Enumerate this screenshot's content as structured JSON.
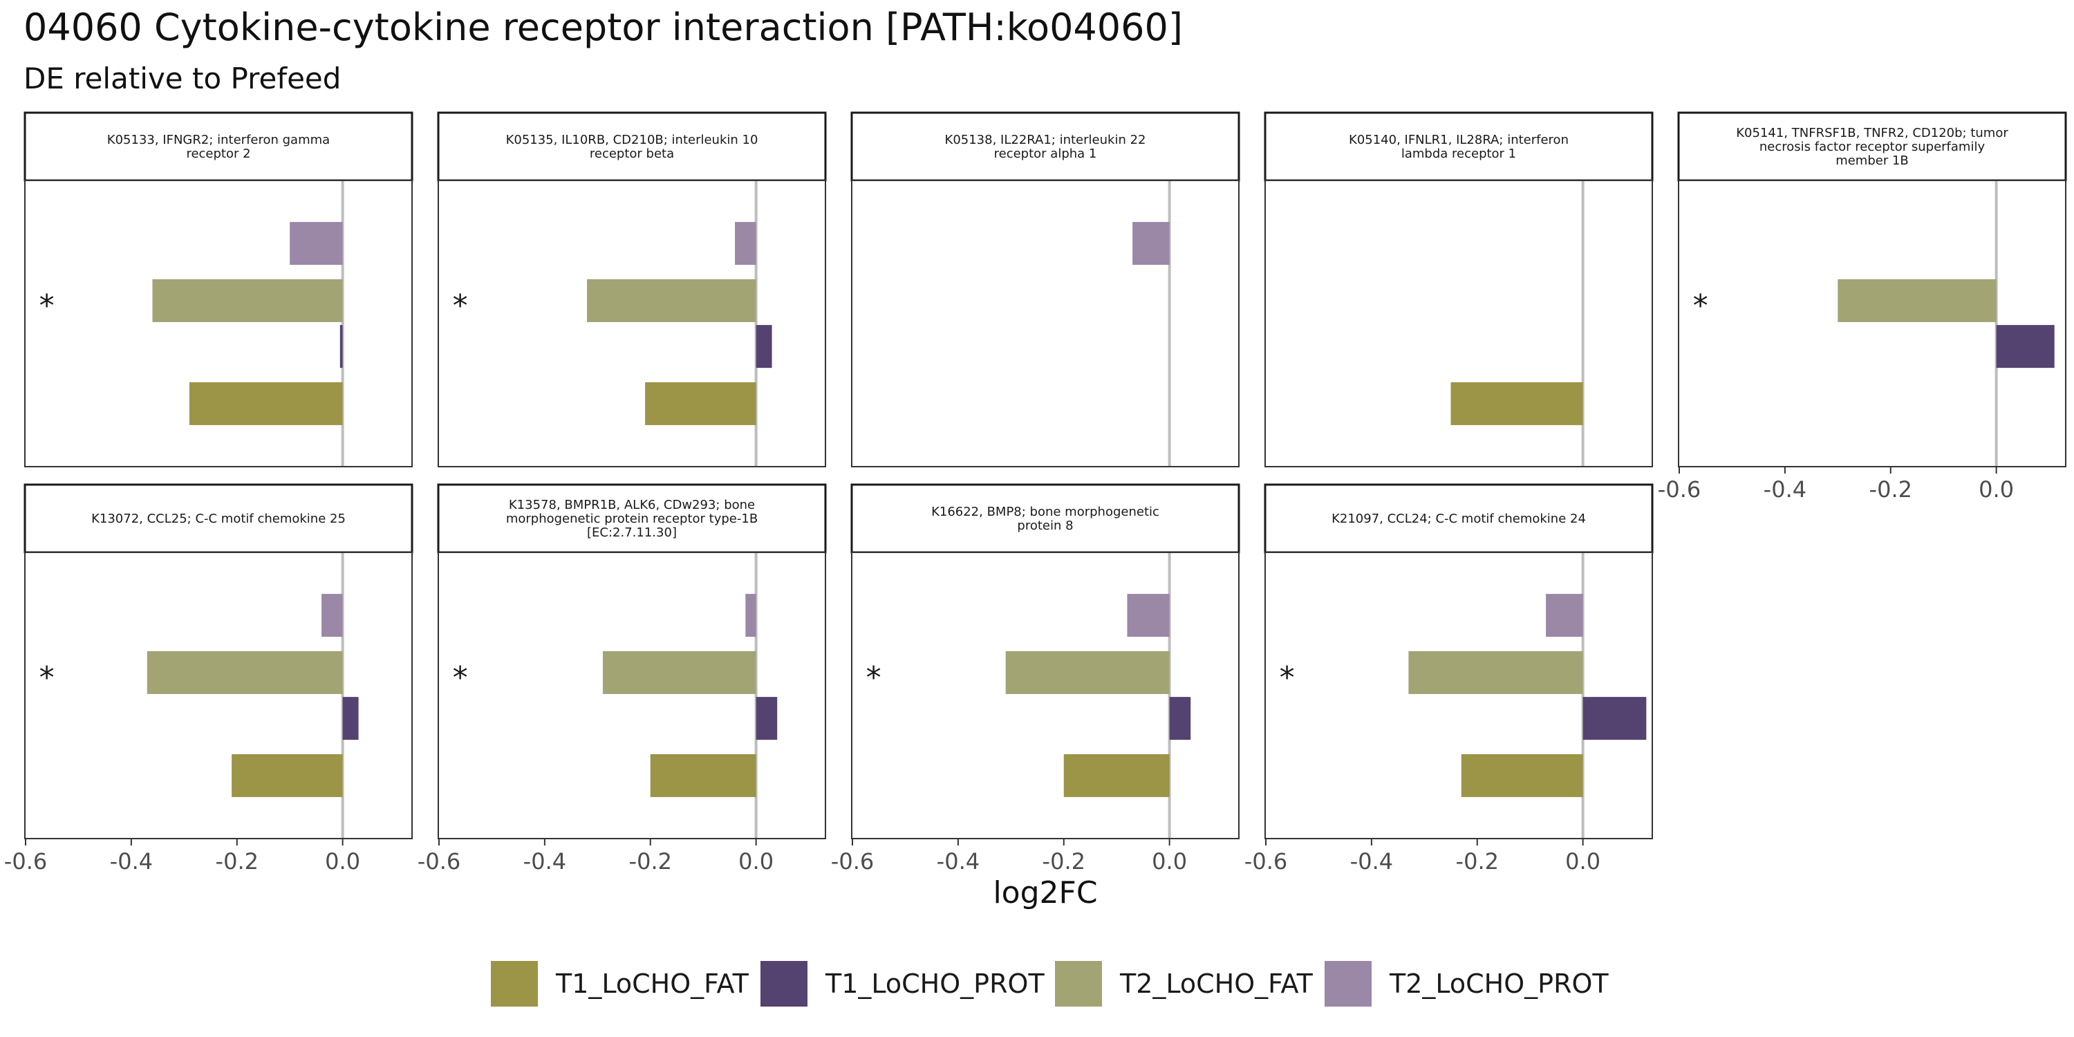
{
  "title": "04060 Cytokine-cytokine receptor interaction [PATH:ko04060]",
  "subtitle": "DE relative to Prefeed",
  "xlabel": "log2FC",
  "colors": {
    "T1_LoCHO_FAT": "#9c9446",
    "T1_LoCHO_PROT": "#544270",
    "T2_LoCHO_FAT": "#a2a474",
    "T2_LoCHO_PROT": "#9b87a6"
  },
  "legend": {
    "items": [
      "T1_LoCHO_FAT",
      "T1_LoCHO_PROT",
      "T2_LoCHO_FAT",
      "T2_LoCHO_PROT"
    ]
  },
  "chart_data": {
    "type": "bar",
    "orientation": "horizontal",
    "facet_layout": "2 rows x 5 columns, x axis shared per column",
    "xlim": [
      -0.6,
      0.13
    ],
    "xticks": [
      -0.6,
      -0.4,
      -0.2,
      0.0
    ],
    "xtick_labels": [
      "-0.6",
      "-0.4",
      "-0.2",
      "0.0"
    ],
    "series": [
      "T2_LoCHO_PROT",
      "T2_LoCHO_FAT",
      "T1_LoCHO_PROT",
      "T1_LoCHO_FAT"
    ],
    "significance_marker": "*",
    "facets": [
      {
        "label": "K05133, IFNGR2; interferon gamma\nreceptor 2",
        "values": {
          "T2_LoCHO_PROT": -0.1,
          "T2_LoCHO_FAT": -0.36,
          "T1_LoCHO_PROT": -0.005,
          "T1_LoCHO_FAT": -0.29
        },
        "star": true
      },
      {
        "label": "K05135, IL10RB, CD210B; interleukin 10\nreceptor beta",
        "values": {
          "T2_LoCHO_PROT": -0.04,
          "T2_LoCHO_FAT": -0.32,
          "T1_LoCHO_PROT": 0.03,
          "T1_LoCHO_FAT": -0.21
        },
        "star": true
      },
      {
        "label": "K05138, IL22RA1; interleukin 22\nreceptor alpha 1",
        "values": {
          "T2_LoCHO_PROT": -0.07
        },
        "star": false
      },
      {
        "label": "K05140, IFNLR1, IL28RA; interferon\nlambda receptor 1",
        "values": {
          "T1_LoCHO_FAT": -0.25
        },
        "star": false
      },
      {
        "label": "K05141, TNFRSF1B, TNFR2, CD120b; tumor\nnecrosis factor receptor superfamily\nmember 1B",
        "values": {
          "T2_LoCHO_FAT": -0.3,
          "T1_LoCHO_PROT": 0.11
        },
        "star": true
      },
      {
        "label": "K13072, CCL25; C-C motif chemokine 25",
        "values": {
          "T2_LoCHO_PROT": -0.04,
          "T2_LoCHO_FAT": -0.37,
          "T1_LoCHO_PROT": 0.03,
          "T1_LoCHO_FAT": -0.21
        },
        "star": true
      },
      {
        "label": "K13578, BMPR1B, ALK6, CDw293; bone\nmorphogenetic protein receptor type-1B\n[EC:2.7.11.30]",
        "values": {
          "T2_LoCHO_PROT": -0.02,
          "T2_LoCHO_FAT": -0.29,
          "T1_LoCHO_PROT": 0.04,
          "T1_LoCHO_FAT": -0.2
        },
        "star": true
      },
      {
        "label": "K16622, BMP8; bone morphogenetic\nprotein 8",
        "values": {
          "T2_LoCHO_PROT": -0.08,
          "T2_LoCHO_FAT": -0.31,
          "T1_LoCHO_PROT": 0.04,
          "T1_LoCHO_FAT": -0.2
        },
        "star": true
      },
      {
        "label": "K21097, CCL24; C-C motif chemokine 24",
        "values": {
          "T2_LoCHO_PROT": -0.07,
          "T2_LoCHO_FAT": -0.33,
          "T1_LoCHO_PROT": 0.12,
          "T1_LoCHO_FAT": -0.23
        },
        "star": true
      }
    ]
  }
}
